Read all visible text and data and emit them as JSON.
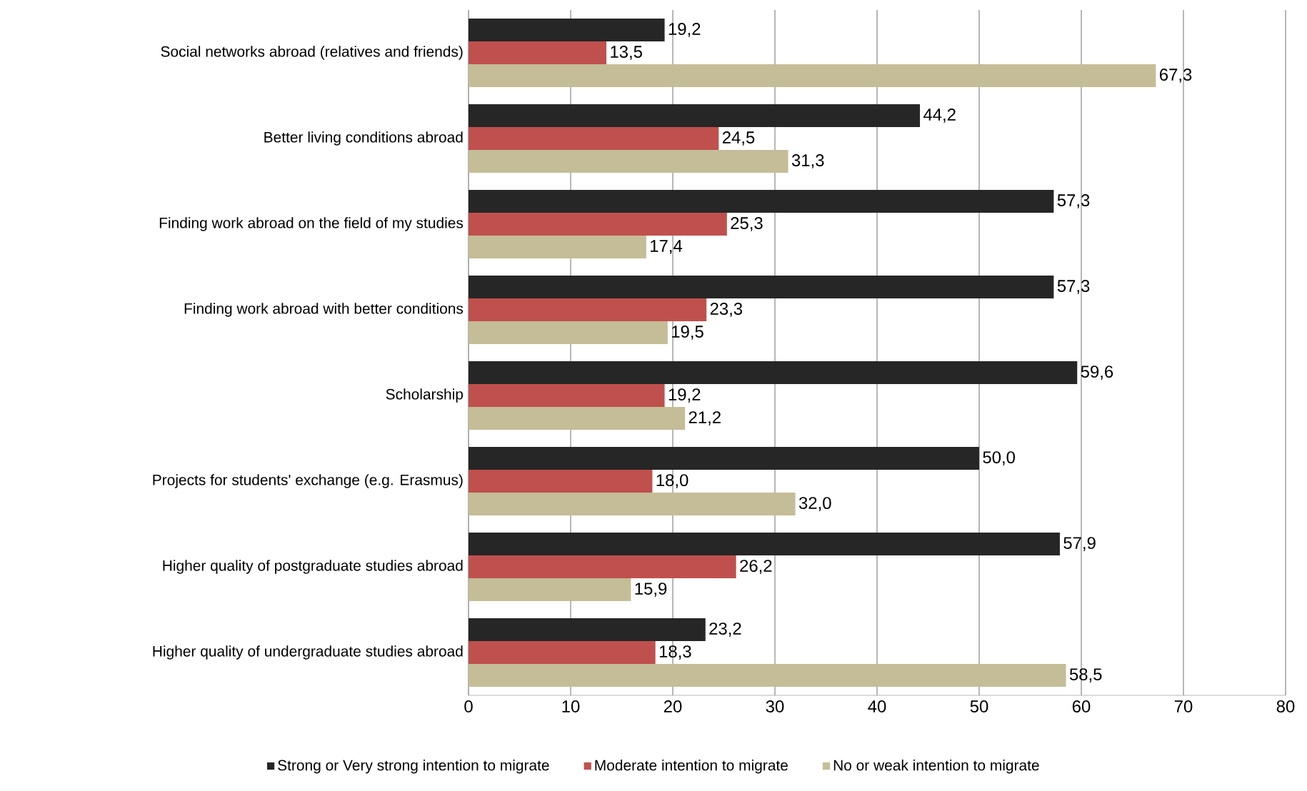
{
  "chart_data": {
    "type": "bar",
    "orientation": "horizontal",
    "categories": [
      "Social networks abroad (relatives and friends)",
      "Better living conditions abroad",
      "Finding work abroad on the field of my studies",
      "Finding work abroad with better conditions",
      "Scholarship",
      "Projects for students' exchange (e.g. Erasmus)",
      "Higher quality of postgraduate studies abroad",
      "Higher quality of undergraduate studies abroad"
    ],
    "series": [
      {
        "name": "Strong or Very strong intention to migrate",
        "color": "#262626",
        "values": [
          19.2,
          44.2,
          57.3,
          57.3,
          59.6,
          50.0,
          57.9,
          23.2
        ],
        "value_labels": [
          "19,2",
          "44,2",
          "57,3",
          "57,3",
          "59,6",
          "50,0",
          "57,9",
          "23,2"
        ]
      },
      {
        "name": "Moderate intention to migrate",
        "color": "#c0504d",
        "values": [
          13.5,
          24.5,
          25.3,
          23.3,
          19.2,
          18.0,
          26.2,
          18.3
        ],
        "value_labels": [
          "13,5",
          "24,5",
          "25,3",
          "23,3",
          "19,2",
          "18,0",
          "26,2",
          "18,3"
        ]
      },
      {
        "name": "No or weak intention to migrate",
        "color": "#c4bd97",
        "values": [
          67.3,
          31.3,
          17.4,
          19.5,
          21.2,
          32.0,
          15.9,
          58.5
        ],
        "value_labels": [
          "67,3",
          "31,3",
          "17,4",
          "19,5",
          "21,2",
          "32,0",
          "15,9",
          "58,5"
        ]
      }
    ],
    "xlim": [
      0,
      80
    ],
    "xticks": [
      0,
      10,
      20,
      30,
      40,
      50,
      60,
      70,
      80
    ],
    "grid": "x",
    "legend": "bottom"
  }
}
